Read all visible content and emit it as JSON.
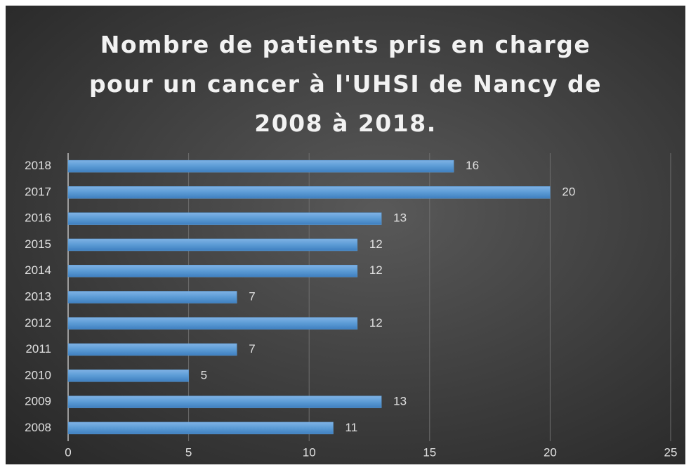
{
  "chart_data": {
    "type": "bar",
    "orientation": "horizontal",
    "title": "Nombre de patients pris en charge pour un cancer à l'UHSI de Nancy de 2008 à 2018.",
    "categories": [
      "2008",
      "2009",
      "2010",
      "2011",
      "2012",
      "2013",
      "2014",
      "2015",
      "2016",
      "2017",
      "2018"
    ],
    "values": [
      11,
      13,
      5,
      7,
      12,
      7,
      12,
      12,
      13,
      20,
      16
    ],
    "color": "#5b9bd5",
    "xlim": [
      0,
      25
    ],
    "xticks": [
      0,
      5,
      10,
      15,
      20,
      25
    ],
    "grid": true
  }
}
